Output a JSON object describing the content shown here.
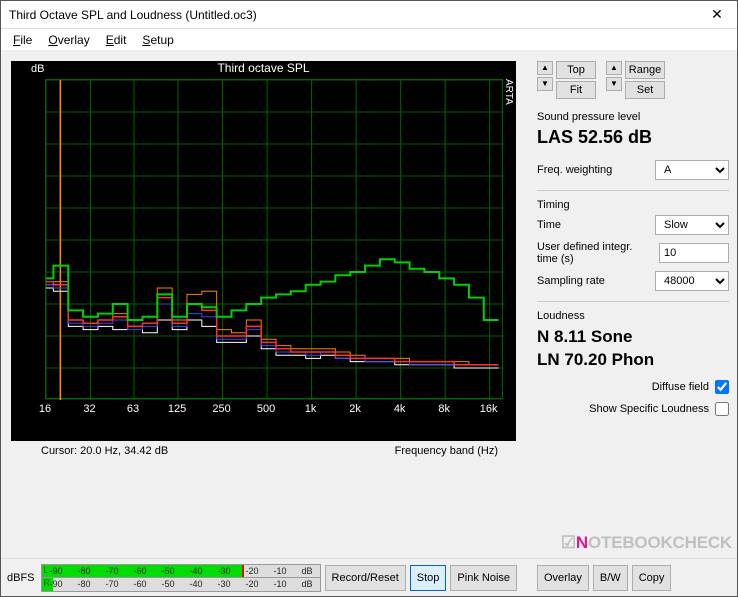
{
  "window": {
    "title": "Third Octave SPL and Loudness (Untitled.oc3)"
  },
  "menu": {
    "file": "File",
    "overlay": "Overlay",
    "edit": "Edit",
    "setup": "Setup"
  },
  "chart": {
    "title": "Third octave SPL",
    "ylabel": "dB",
    "xlabel": "Frequency band (Hz)",
    "brand": "ARTA",
    "background": "#000000",
    "grid_color": "#006400",
    "xticks": [
      "16",
      "32",
      "63",
      "125",
      "250",
      "500",
      "1k",
      "2k",
      "4k",
      "8k",
      "16k"
    ],
    "ylim": [
      0,
      100
    ],
    "ytick_step": 10,
    "xlim_log": [
      16,
      20000
    ],
    "cursor": "Cursor:    20.0 Hz, 34.42 dB",
    "series": [
      {
        "color": "#ffffff",
        "width": 1,
        "values": [
          35,
          34,
          23,
          22,
          23,
          22,
          23,
          21,
          25,
          22,
          25,
          23,
          18,
          18,
          20,
          16,
          14,
          14,
          13,
          14,
          13,
          12,
          12,
          12,
          11,
          11,
          11,
          11,
          10,
          10,
          10
        ]
      },
      {
        "color": "#ff7f00",
        "width": 1,
        "values": [
          36,
          37,
          25,
          24,
          25,
          27,
          23,
          24,
          35,
          25,
          33,
          34,
          22,
          21,
          25,
          19,
          17,
          16,
          16,
          16,
          15,
          14,
          13,
          13,
          13,
          12,
          12,
          12,
          12,
          11,
          11
        ]
      },
      {
        "color": "#4040ff",
        "width": 1,
        "values": [
          36,
          35,
          24,
          23,
          24,
          25,
          22,
          23,
          30,
          23,
          27,
          26,
          19,
          19,
          22,
          17,
          15,
          15,
          14,
          15,
          13,
          13,
          12,
          12,
          12,
          11,
          11,
          11,
          11,
          11,
          11
        ]
      },
      {
        "color": "#ff3030",
        "width": 1.5,
        "values": [
          37,
          36,
          25,
          24,
          25,
          26,
          23,
          24,
          32,
          24,
          30,
          28,
          20,
          20,
          23,
          18,
          16,
          15,
          15,
          15,
          14,
          13,
          13,
          13,
          12,
          12,
          12,
          12,
          11,
          11,
          11
        ]
      },
      {
        "color": "#00d000",
        "width": 2,
        "values": [
          38,
          42,
          28,
          26,
          27,
          30,
          25,
          26,
          33,
          26,
          30,
          29,
          26,
          28,
          30,
          32,
          33,
          34,
          36,
          37,
          39,
          40,
          42,
          44,
          43,
          41,
          40,
          38,
          36,
          32,
          25
        ]
      }
    ]
  },
  "controls": {
    "top_label": "Top",
    "fit_label": "Fit",
    "range_label": "Range",
    "set_label": "Set",
    "spl_title": "Sound pressure level",
    "spl_value": "LAS 52.56 dB",
    "freq_weight_label": "Freq. weighting",
    "freq_weight_value": "A",
    "timing_title": "Timing",
    "time_label": "Time",
    "time_value": "Slow",
    "integr_label": "User defined integr. time (s)",
    "integr_value": "10",
    "sampling_label": "Sampling rate",
    "sampling_value": "48000",
    "loudness_title": "Loudness",
    "loudness_n": "N 8.11 Sone",
    "loudness_ln": "LN 70.20 Phon",
    "diffuse_label": "Diffuse field",
    "diffuse_checked": true,
    "ssl_label": "Show Specific Loudness",
    "ssl_checked": false
  },
  "bbar": {
    "dbfs": "dBFS",
    "meter_ticks": [
      "-90",
      "-80",
      "-70",
      "-60",
      "-50",
      "-40",
      "-30",
      "-20",
      "-10",
      "dB"
    ],
    "L": "L",
    "R": "R",
    "record": "Record/Reset",
    "stop": "Stop",
    "pink": "Pink Noise",
    "overlay": "Overlay",
    "bw": "B/W",
    "copy": "Copy"
  },
  "watermark": "NOTEBOOKCHECK"
}
